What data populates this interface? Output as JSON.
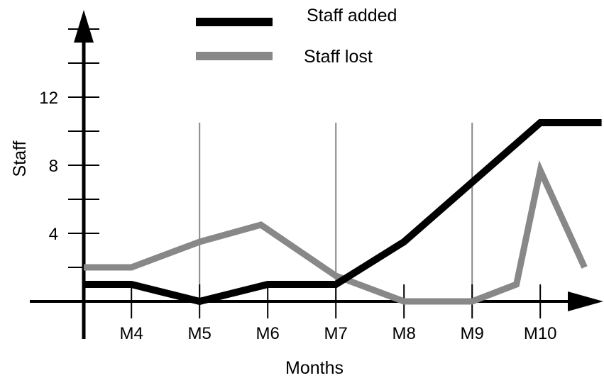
{
  "chart_data": {
    "type": "line",
    "title": "",
    "xlabel": "Months",
    "ylabel": "Staff",
    "x_ticks": [
      "M4",
      "M5",
      "M6",
      "M7",
      "M8",
      "M9",
      "M10"
    ],
    "y_ticks": [
      "4",
      "8",
      "12"
    ],
    "ylim": [
      0,
      16
    ],
    "x_gridlines_at": [
      "M5",
      "M7",
      "M9"
    ],
    "legend_placement": "top-center",
    "series": [
      {
        "name": "Staff added",
        "color": "#000000",
        "points": [
          [
            3.3,
            1
          ],
          [
            4,
            1
          ],
          [
            5,
            0
          ],
          [
            6,
            1
          ],
          [
            7,
            1
          ],
          [
            8,
            3.5
          ],
          [
            9,
            7
          ],
          [
            10,
            10.5
          ],
          [
            10.9,
            10.5
          ]
        ]
      },
      {
        "name": "Staff lost",
        "color": "#888888",
        "points": [
          [
            3.3,
            2
          ],
          [
            4,
            2
          ],
          [
            5,
            3.5
          ],
          [
            5.9,
            4.5
          ],
          [
            7,
            1.5
          ],
          [
            8,
            0
          ],
          [
            9,
            0
          ],
          [
            9.65,
            1
          ],
          [
            10,
            7.7
          ],
          [
            10.65,
            2
          ]
        ]
      }
    ]
  }
}
